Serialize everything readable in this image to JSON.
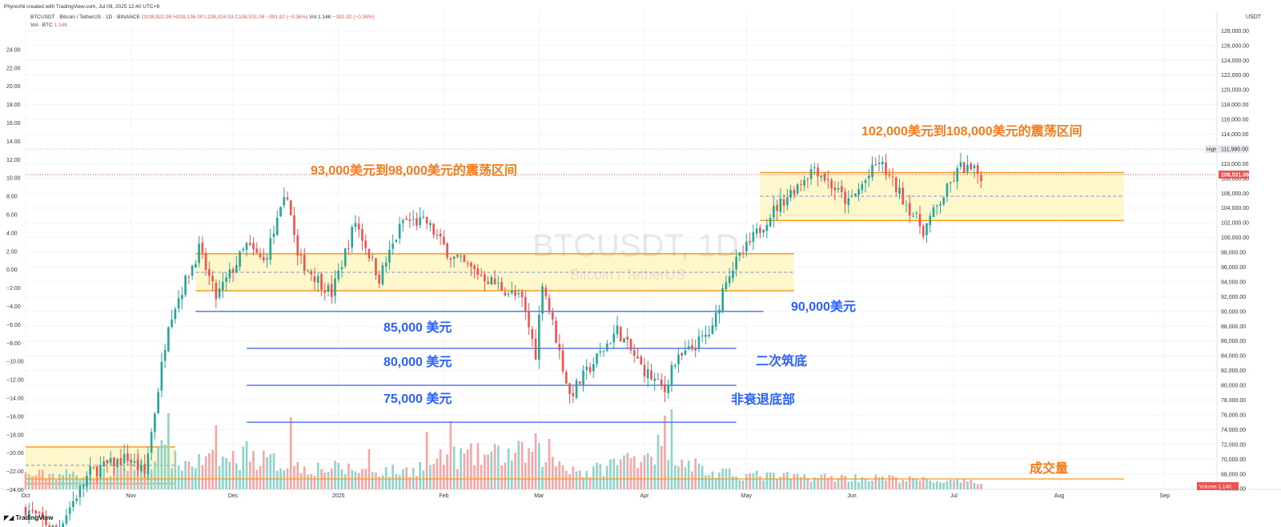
{
  "header": {
    "credit": "PhyrexNi created with TradingView.com, Jul 09, 2025 12:40 UTC+8",
    "symbol_line": "BTCUSDT · Bitcoin / TetherUS · 1D · BINANCE",
    "ohlc": {
      "o": "O108,922.99",
      "h": "H109,136.00",
      "l": "L108,324.53",
      "c": "C108,531.06",
      "chg": "−391.92 (−0.36%)"
    },
    "vol_inline": "Vol 1.14K",
    "vol_chg": "−391.92 (−0.36%)",
    "vol_label": "Vol · BTC",
    "vol_value": "1.14K"
  },
  "watermark": {
    "title": "BTCUSDT, 1D",
    "subtitle": "Bitcoin / TetherUS"
  },
  "unit_label": "USDT",
  "branding": "TradingView",
  "colors": {
    "up": "#26a69a",
    "down": "#ef5350",
    "up_vol": "#8fd3cb",
    "down_vol": "#f6a6a4",
    "zone_fill": "#fff7cc",
    "zone_edge": "#f59b23",
    "level_line": "#4a6cf0",
    "annot_orange": "#f57c1a",
    "annot_blue": "#2962ff"
  },
  "annotations": {
    "range_low": "93,000美元到98,000美元的震荡区间",
    "range_high": "102,000美元到108,000美元的震荡区间",
    "level_90k": "90,000美元",
    "level_85k": "85,000 美元",
    "level_80k": "80,000 美元",
    "level_75k": "75,000 美元",
    "second_bottom": "二次筑底",
    "non_recession": "非衰退底部",
    "volume": "成交量"
  },
  "price_badges": {
    "high_label": "High",
    "high_value": "111,980.00",
    "last": "108,531.06",
    "volume_label": "Volume",
    "volume_value": "1.14K"
  },
  "chart_data": {
    "type": "candlestick",
    "x_range": [
      "2024-10-01",
      "2025-09-10"
    ],
    "ylim": [
      64000,
      130000
    ],
    "right_ticks": [
      "66,000.00",
      "68,000.00",
      "70,000.00",
      "72,000.00",
      "74,000.00",
      "76,000.00",
      "78,000.00",
      "80,000.00",
      "82,000.00",
      "84,000.00",
      "86,000.00",
      "88,000.00",
      "90,000.00",
      "92,000.00",
      "94,000.00",
      "96,000.00",
      "98,000.00",
      "100,000.00",
      "102,000.00",
      "104,000.00",
      "106,000.00",
      "108,000.00",
      "110,000.00",
      "114,000.00",
      "116,000.00",
      "118,000.00",
      "120,000.00",
      "122,000.00",
      "124,000.00",
      "126,000.00",
      "128,000.00"
    ],
    "left_ticks": [
      "−24.00",
      "−22.00",
      "−20.00",
      "−18.00",
      "−16.00",
      "−14.00",
      "−12.00",
      "−10.00",
      "−8.00",
      "−6.00",
      "−4.00",
      "−2.00",
      "0.00",
      "2.00",
      "4.00",
      "6.00",
      "8.00",
      "10.00",
      "12.00",
      "14.00",
      "16.00",
      "18.00",
      "20.00",
      "22.00",
      "24.00"
    ],
    "x_ticks": [
      {
        "label": "Oct",
        "date": "2024-10-01"
      },
      {
        "label": "Nov",
        "date": "2024-11-01"
      },
      {
        "label": "Dec",
        "date": "2024-12-01"
      },
      {
        "label": "2025",
        "date": "2025-01-01"
      },
      {
        "label": "Feb",
        "date": "2025-02-01"
      },
      {
        "label": "Mar",
        "date": "2025-03-01"
      },
      {
        "label": "Apr",
        "date": "2025-04-01"
      },
      {
        "label": "May",
        "date": "2025-05-01"
      },
      {
        "label": "Jun",
        "date": "2025-06-01"
      },
      {
        "label": "Jul",
        "date": "2025-07-01"
      },
      {
        "label": "Aug",
        "date": "2025-08-01"
      },
      {
        "label": "Sep",
        "date": "2025-09-01"
      }
    ],
    "zones": [
      {
        "from": "2024-11-20",
        "to": "2025-05-15",
        "low": 92800,
        "high": 97800,
        "mid": 95300
      },
      {
        "from": "2025-05-05",
        "to": "2025-08-20",
        "low": 102300,
        "high": 108800,
        "mid": 105600
      }
    ],
    "volume_zone": {
      "from": "2024-10-01",
      "to": "2024-11-14"
    },
    "levels": [
      {
        "value": 90000,
        "from": "2024-11-20",
        "to": "2025-05-06"
      },
      {
        "value": 85000,
        "from": "2024-12-05",
        "to": "2025-04-28"
      },
      {
        "value": 80000,
        "from": "2024-12-05",
        "to": "2025-04-28"
      },
      {
        "value": 75000,
        "from": "2024-12-05",
        "to": "2025-04-28"
      }
    ],
    "high_line": 111980,
    "last_price": 108531.06,
    "anchors": [
      [
        "2024-10-01",
        63300
      ],
      [
        "2024-10-10",
        60300
      ],
      [
        "2024-10-20",
        68300
      ],
      [
        "2024-10-31",
        70200
      ],
      [
        "2024-11-05",
        68000
      ],
      [
        "2024-11-08",
        76500
      ],
      [
        "2024-11-12",
        88700
      ],
      [
        "2024-11-21",
        98400
      ],
      [
        "2024-11-26",
        91900
      ],
      [
        "2024-12-05",
        98900
      ],
      [
        "2024-12-10",
        96700
      ],
      [
        "2024-12-17",
        106000
      ],
      [
        "2024-12-20",
        97200
      ],
      [
        "2024-12-30",
        92400
      ],
      [
        "2025-01-06",
        102200
      ],
      [
        "2025-01-13",
        94500
      ],
      [
        "2025-01-20",
        102300
      ],
      [
        "2025-01-27",
        102000
      ],
      [
        "2025-02-03",
        97500
      ],
      [
        "2025-02-24",
        91500
      ],
      [
        "2025-02-28",
        84300
      ],
      [
        "2025-03-02",
        94200
      ],
      [
        "2025-03-10",
        78600
      ],
      [
        "2025-03-24",
        87500
      ],
      [
        "2025-03-31",
        82500
      ],
      [
        "2025-04-07",
        79200
      ],
      [
        "2025-04-09",
        82600
      ],
      [
        "2025-04-21",
        87500
      ],
      [
        "2025-04-25",
        94700
      ],
      [
        "2025-05-08",
        103200
      ],
      [
        "2025-05-21",
        109600
      ],
      [
        "2025-05-31",
        104600
      ],
      [
        "2025-06-09",
        110300
      ],
      [
        "2025-06-22",
        101000
      ],
      [
        "2025-07-03",
        109600
      ],
      [
        "2025-07-09",
        108531
      ]
    ],
    "volume_anchors": [
      [
        "2024-10-01",
        18
      ],
      [
        "2024-10-25",
        20
      ],
      [
        "2024-11-10",
        45
      ],
      [
        "2024-11-15",
        32
      ],
      [
        "2024-12-06",
        40
      ],
      [
        "2024-12-20",
        28
      ],
      [
        "2025-01-20",
        22
      ],
      [
        "2025-02-03",
        40
      ],
      [
        "2025-02-28",
        45
      ],
      [
        "2025-03-15",
        20
      ],
      [
        "2025-04-07",
        55
      ],
      [
        "2025-04-20",
        20
      ],
      [
        "2025-05-10",
        16
      ],
      [
        "2025-06-10",
        14
      ],
      [
        "2025-07-09",
        8
      ]
    ],
    "volume_spikes": [
      [
        "2024-11-12",
        95
      ],
      [
        "2024-11-26",
        80
      ],
      [
        "2024-12-05",
        60
      ],
      [
        "2024-12-18",
        90
      ],
      [
        "2025-01-10",
        50
      ],
      [
        "2025-01-27",
        72
      ],
      [
        "2025-02-03",
        85
      ],
      [
        "2025-02-28",
        70
      ],
      [
        "2025-03-04",
        63
      ],
      [
        "2025-04-07",
        92
      ],
      [
        "2025-04-09",
        100
      ]
    ]
  }
}
